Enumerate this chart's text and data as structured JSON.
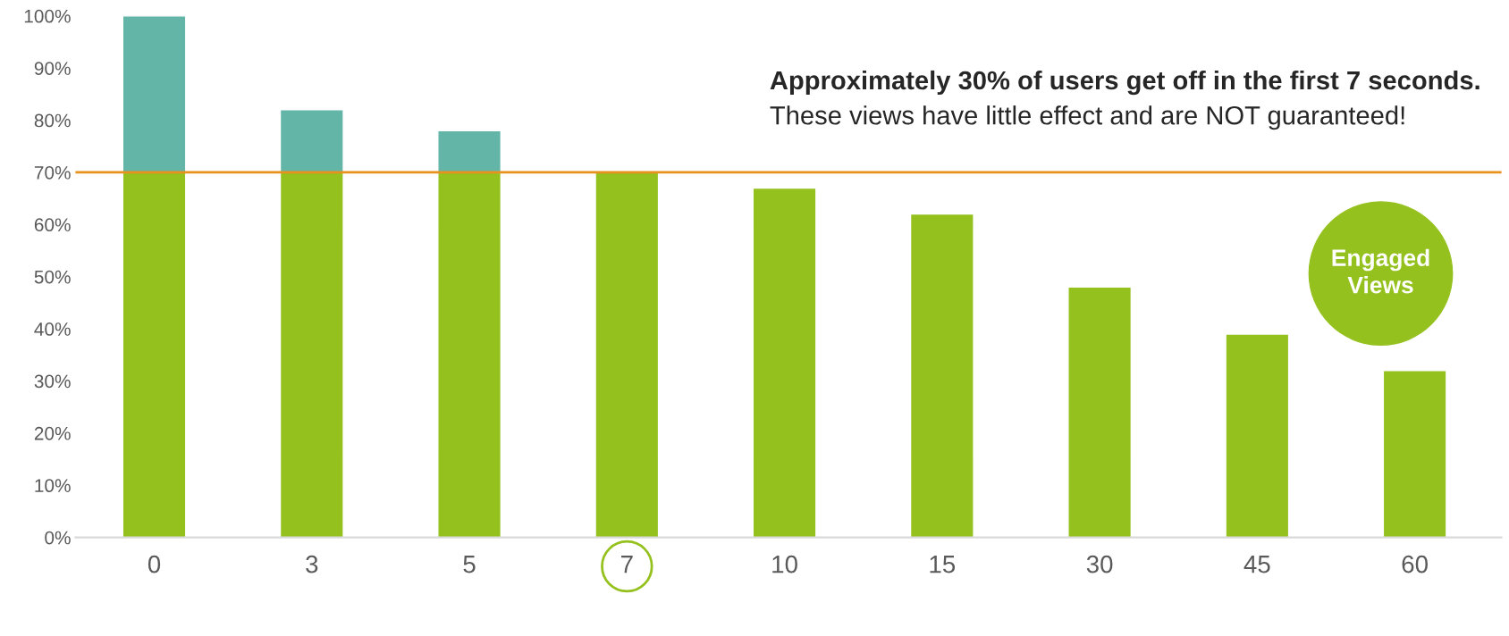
{
  "chart_data": {
    "type": "bar",
    "stacked": true,
    "categories": [
      "0",
      "3",
      "5",
      "7",
      "10",
      "15",
      "30",
      "45",
      "60"
    ],
    "series": [
      {
        "color": "#95c11f",
        "values": [
          70,
          70,
          70,
          70,
          67,
          62,
          48,
          39,
          32
        ]
      },
      {
        "color": "#63b5a8",
        "values": [
          30,
          12,
          8,
          null,
          null,
          null,
          null,
          null,
          null
        ]
      }
    ],
    "ylim": [
      0,
      100
    ],
    "yticks": [
      {
        "value": 0,
        "label": "0%"
      },
      {
        "value": 10,
        "label": "10%"
      },
      {
        "value": 20,
        "label": "20%"
      },
      {
        "value": 30,
        "label": "30%"
      },
      {
        "value": 40,
        "label": "40%"
      },
      {
        "value": 50,
        "label": "50%"
      },
      {
        "value": 60,
        "label": "60%"
      },
      {
        "value": 70,
        "label": "70%"
      },
      {
        "value": 80,
        "label": "80%"
      },
      {
        "value": 90,
        "label": "90%"
      },
      {
        "value": 100,
        "label": "100%"
      }
    ],
    "ref_lines": [
      {
        "axis": "y",
        "value": 70,
        "color": "#e8911c"
      }
    ],
    "annotations": [
      "Approximately 30% of users get off in the first 7 seconds.",
      "These views have little effect and are NOT guaranteed!",
      "Engaged Views"
    ],
    "grid": false,
    "legend": false
  }
}
